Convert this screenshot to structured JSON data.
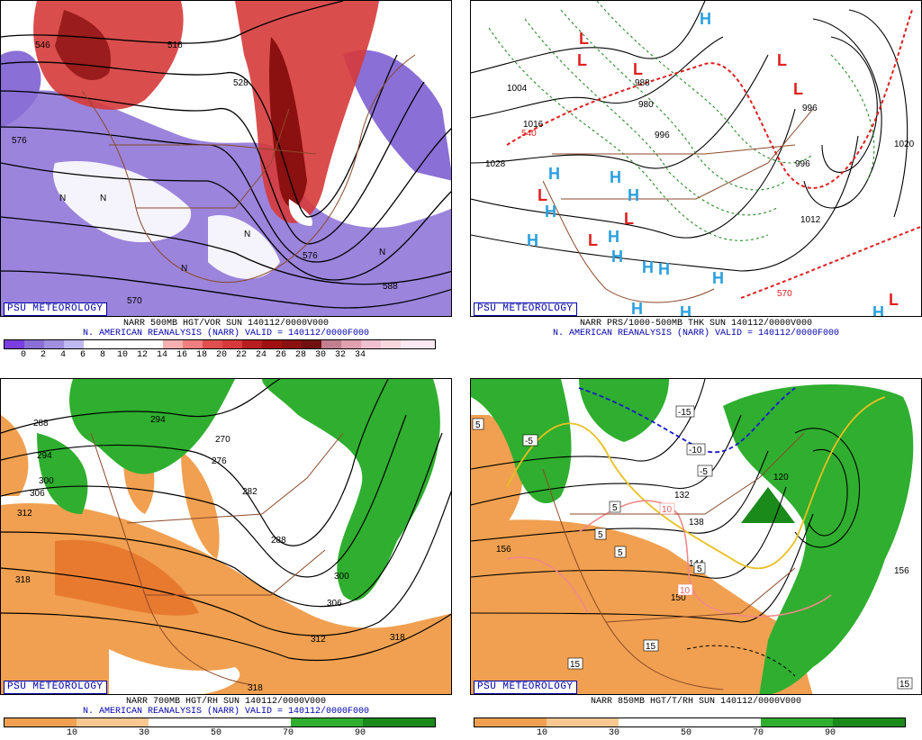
{
  "badge": "PSU METEOROLOGY",
  "colors": {
    "vor_purple": "#8a6fd6",
    "vor_red": "#d63a3a",
    "vor_darkred": "#8b1010",
    "rh_green": "#2fae2f",
    "rh_orange": "#f0a050",
    "map_brown": "#8b4a2a",
    "thk_red": "#e02020",
    "thk_green": "#2a8a2a",
    "high_blue": "#2aa0e0",
    "low_red": "#e02020"
  },
  "panels": [
    {
      "id": "vort500",
      "caption1": "NARR 500MB HGT/VOR SUN 140112/0000V000",
      "caption2": "N. AMERICAN REANALYSIS (NARR) VALID = 140112/0000F000",
      "ticks": [
        "0",
        "2",
        "4",
        "6",
        "8",
        "10",
        "12",
        "14",
        "16",
        "18",
        "20",
        "22",
        "24",
        "26",
        "28",
        "30",
        "32",
        "34"
      ],
      "contour_labels": [
        "546",
        "516",
        "528",
        "576",
        "570",
        "588",
        "570"
      ]
    },
    {
      "id": "thk",
      "caption1": "NARR PRS/1000-500MB THK SUN 140112/0000V000",
      "caption2": "N. AMERICAN REANALYSIS (NARR) VALID = 140112/0000F000",
      "ticks": [],
      "contour_labels": [
        "1028",
        "1004",
        "1016",
        "988",
        "980",
        "996",
        "996",
        "1012",
        "1020",
        "540",
        "570",
        "996"
      ]
    },
    {
      "id": "rh700",
      "caption1": "NARR 700MB HGT/RH SUN 140112/0000V000",
      "caption2": "N. AMERICAN REANALYSIS (NARR) VALID = 140112/0000F000",
      "ticks": [
        "10",
        "30",
        "50",
        "70",
        "90"
      ],
      "contour_labels": [
        "294",
        "306",
        "312",
        "318",
        "270",
        "276",
        "282",
        "288",
        "300",
        "306",
        "312",
        "318",
        "318",
        "294"
      ]
    },
    {
      "id": "t850",
      "caption1": "NARR 850MB HGT/T/RH SUN 140112/0000V000",
      "caption2": "",
      "ticks": [
        "10",
        "30",
        "50",
        "70",
        "90"
      ],
      "contour_labels": [
        "156",
        "120",
        "132",
        "138",
        "144",
        "150",
        "156",
        "-5",
        "-10",
        "-15",
        "5",
        "10",
        "15"
      ]
    }
  ]
}
